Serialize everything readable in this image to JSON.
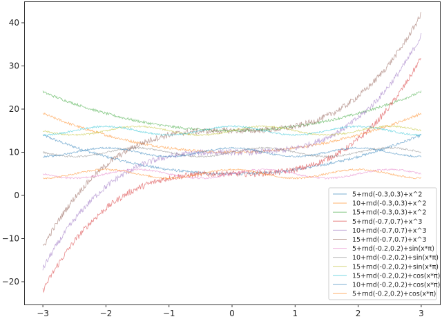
{
  "chart_data": {
    "type": "line",
    "title": "",
    "xlabel": "",
    "ylabel": "",
    "xlim": [
      -3.3,
      3.3
    ],
    "ylim": [
      -25,
      45
    ],
    "xticks": [
      -3,
      -2,
      -1,
      0,
      1,
      2,
      3
    ],
    "yticks": [
      -20,
      -10,
      0,
      10,
      20,
      30,
      40
    ],
    "grid": false,
    "legend_position": "lower right",
    "x": [
      -3,
      -2.5,
      -2,
      -1.5,
      -1,
      -0.5,
      0,
      0.5,
      1,
      1.5,
      2,
      2.5,
      3
    ],
    "series": [
      {
        "name": "5+rnd(-0.3,0.3)+x^2",
        "color": "#1f77b4",
        "base": 5,
        "fn": "sq",
        "noise": 0.3,
        "values": [
          14,
          11.25,
          9,
          7.25,
          6,
          5.25,
          5,
          5.25,
          6,
          7.25,
          9,
          11.25,
          14
        ]
      },
      {
        "name": "10+rnd(-0.3,0.3)+x^2",
        "color": "#ff7f0e",
        "base": 10,
        "fn": "sq",
        "noise": 0.3,
        "values": [
          19,
          16.25,
          14,
          12.25,
          11,
          10.25,
          10,
          10.25,
          11,
          12.25,
          14,
          16.25,
          19
        ]
      },
      {
        "name": "15+rnd(-0.3,0.3)+x^2",
        "color": "#2ca02c",
        "base": 15,
        "fn": "sq",
        "noise": 0.3,
        "values": [
          24,
          21.25,
          19,
          17.25,
          16,
          15.25,
          15,
          15.25,
          16,
          17.25,
          19,
          21.25,
          24
        ]
      },
      {
        "name": "5+rnd(-0.7,0.7)+x^3",
        "color": "#d62728",
        "base": 5,
        "fn": "cube",
        "noise": 0.7,
        "values": [
          -22,
          -10.6,
          -3,
          1.6,
          4,
          4.9,
          5,
          5.1,
          6,
          8.4,
          13,
          20.6,
          32
        ]
      },
      {
        "name": "10+rnd(-0.7,0.7)+x^3",
        "color": "#9467bd",
        "base": 10,
        "fn": "cube",
        "noise": 0.7,
        "values": [
          -17,
          -5.6,
          2,
          6.6,
          9,
          9.9,
          10,
          10.1,
          11,
          13.4,
          18,
          25.6,
          37
        ]
      },
      {
        "name": "15+rnd(-0.7,0.7)+x^3",
        "color": "#8c564b",
        "base": 15,
        "fn": "cube",
        "noise": 0.7,
        "values": [
          -12,
          -0.6,
          7,
          11.6,
          14,
          14.9,
          15,
          15.1,
          16,
          18.4,
          23,
          30.6,
          42
        ]
      },
      {
        "name": "5+rnd(-0.2,0.2)+sin(x*π)",
        "color": "#e377c2",
        "base": 5,
        "fn": "sin",
        "noise": 0.2,
        "values": [
          5,
          4,
          5,
          6,
          5,
          4,
          5,
          6,
          5,
          4,
          5,
          6,
          5
        ]
      },
      {
        "name": "10+rnd(-0.2,0.2)+sin(x*π)",
        "color": "#7f7f7f",
        "base": 10,
        "fn": "sin",
        "noise": 0.2,
        "values": [
          10,
          9,
          10,
          11,
          10,
          9,
          10,
          11,
          10,
          9,
          10,
          11,
          10
        ]
      },
      {
        "name": "15+rnd(-0.2,0.2)+sin(x*π)",
        "color": "#bcbd22",
        "base": 15,
        "fn": "sin",
        "noise": 0.2,
        "values": [
          15,
          14,
          15,
          16,
          15,
          14,
          15,
          16,
          15,
          14,
          15,
          16,
          15
        ]
      },
      {
        "name": "15+rnd(-0.2,0.2)+cos(x*π)",
        "color": "#17becf",
        "base": 15,
        "fn": "cos",
        "noise": 0.2,
        "values": [
          14,
          15,
          16,
          15,
          14,
          15,
          16,
          15,
          14,
          15,
          16,
          15,
          14
        ]
      },
      {
        "name": "10+rnd(-0.2,0.2)+cos(x*π)",
        "color": "#1f77b4",
        "base": 10,
        "fn": "cos",
        "noise": 0.2,
        "values": [
          9,
          10,
          11,
          10,
          9,
          10,
          11,
          10,
          9,
          10,
          11,
          10,
          9
        ]
      },
      {
        "name": "5+rnd(-0.2,0.2)+cos(x*π)",
        "color": "#ff7f0e",
        "base": 5,
        "fn": "cos",
        "noise": 0.2,
        "values": [
          4,
          5,
          6,
          5,
          4,
          5,
          6,
          5,
          4,
          5,
          6,
          5,
          4
        ]
      }
    ]
  }
}
